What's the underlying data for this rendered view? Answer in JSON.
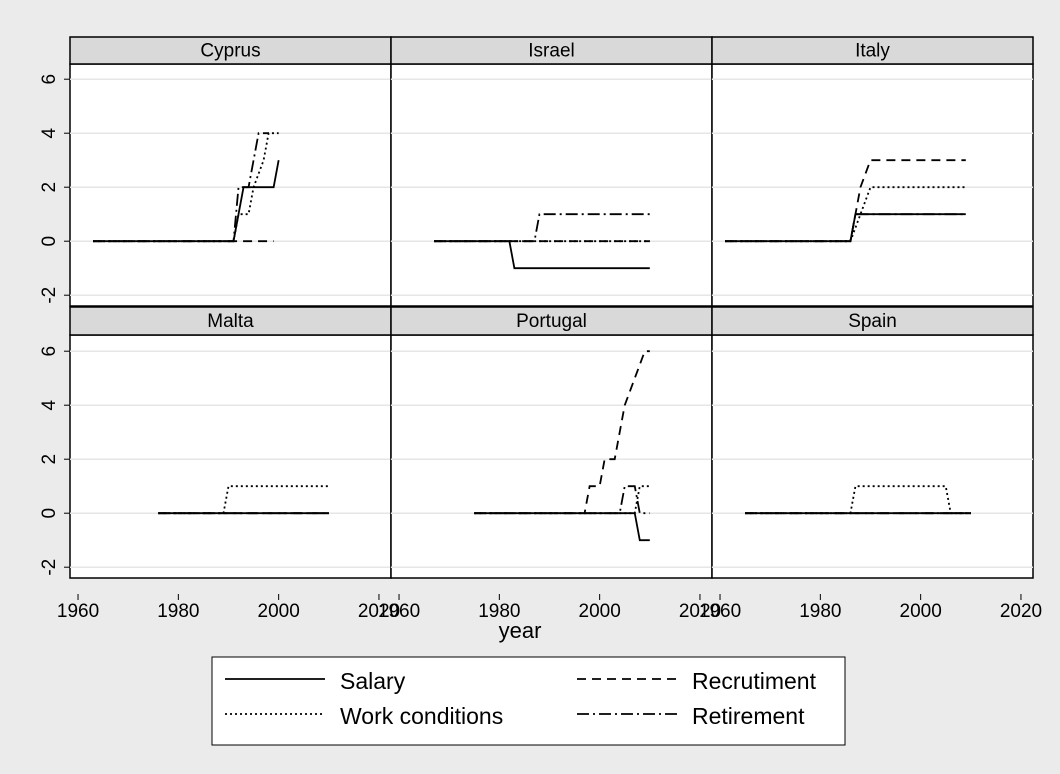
{
  "chart_data": {
    "type": "line",
    "x_label": "year",
    "xlim": [
      1958.4,
      2022.4
    ],
    "xticks": [
      1960,
      1980,
      2000,
      2020
    ],
    "ylim": [
      -2.4,
      6.6
    ],
    "yticks": [
      -2,
      0,
      2,
      4,
      6
    ],
    "grid": true,
    "series": [
      {
        "name": "Salary",
        "color": "#000000",
        "dash": "none"
      },
      {
        "name": "Recrutiment",
        "color": "#000000",
        "dash": "9 6"
      },
      {
        "name": "Work conditions",
        "color": "#000000",
        "dash": "2 3"
      },
      {
        "name": "Retirement",
        "color": "#000000",
        "dash": "12 4 2 4"
      }
    ],
    "panels": [
      {
        "title": "Cyprus",
        "lines": [
          {
            "x": [
              1963,
              1991,
              1992,
              1993,
              1999,
              2000
            ],
            "values": [
              0,
              0,
              1,
              2,
              2,
              3
            ]
          },
          {
            "x": [
              1963,
              1999
            ],
            "values": [
              0,
              0
            ]
          },
          {
            "x": [
              1963,
              1991,
              1992,
              1994,
              1995,
              1997,
              1998,
              2000
            ],
            "values": [
              0,
              0,
              1,
              1,
              2,
              3,
              4,
              4
            ]
          },
          {
            "x": [
              1963,
              1991,
              1992,
              1994,
              1996,
              1998
            ],
            "values": [
              0,
              0,
              2,
              2,
              4,
              4
            ]
          }
        ]
      },
      {
        "title": "Israel",
        "lines": [
          {
            "x": [
              1967,
              1982,
              1983,
              2010
            ],
            "values": [
              0,
              0,
              -1,
              -1
            ]
          },
          {
            "x": [
              1967,
              2010
            ],
            "values": [
              0,
              0
            ]
          },
          {
            "x": [
              1967,
              2010
            ],
            "values": [
              0,
              0
            ]
          },
          {
            "x": [
              1967,
              1987,
              1988,
              2010
            ],
            "values": [
              0,
              0,
              1,
              1
            ]
          }
        ]
      },
      {
        "title": "Italy",
        "lines": [
          {
            "x": [
              1961,
              1986,
              1987,
              2009
            ],
            "values": [
              0,
              0,
              1,
              1
            ]
          },
          {
            "x": [
              1961,
              1986,
              1988,
              1990,
              2009
            ],
            "values": [
              0,
              0,
              2,
              3,
              3
            ]
          },
          {
            "x": [
              1961,
              1986,
              1988,
              1990,
              2009
            ],
            "values": [
              0,
              0,
              1,
              2,
              2
            ]
          },
          {
            "x": [
              1961,
              1986,
              1987,
              2009
            ],
            "values": [
              0,
              0,
              1,
              1
            ]
          }
        ]
      },
      {
        "title": "Malta",
        "lines": [
          {
            "x": [
              1976,
              2010
            ],
            "values": [
              0,
              0
            ]
          },
          {
            "x": [
              1976,
              2010
            ],
            "values": [
              0,
              0
            ]
          },
          {
            "x": [
              1976,
              1989,
              1990,
              2010
            ],
            "values": [
              0,
              0,
              1,
              1
            ]
          },
          {
            "x": [
              1976,
              2010
            ],
            "values": [
              0,
              0
            ]
          }
        ]
      },
      {
        "title": "Portugal",
        "lines": [
          {
            "x": [
              1975,
              2007,
              2008,
              2010
            ],
            "values": [
              0,
              0,
              -1,
              -1
            ]
          },
          {
            "x": [
              1975,
              1997,
              1998,
              2000,
              2001,
              2003,
              2005,
              2007,
              2009,
              2010
            ],
            "values": [
              0,
              0,
              1,
              1,
              2,
              2,
              4,
              5,
              6,
              6
            ]
          },
          {
            "x": [
              1975,
              2007,
              2008,
              2010
            ],
            "values": [
              0,
              0,
              1,
              1
            ]
          },
          {
            "x": [
              1975,
              2004,
              2005,
              2007,
              2008,
              2010
            ],
            "values": [
              0,
              0,
              1,
              1,
              0,
              0
            ]
          }
        ]
      },
      {
        "title": "Spain",
        "lines": [
          {
            "x": [
              1965,
              2010
            ],
            "values": [
              0,
              0
            ]
          },
          {
            "x": [
              1965,
              2010
            ],
            "values": [
              0,
              0
            ]
          },
          {
            "x": [
              1965,
              1986,
              1987,
              2005,
              2006,
              2010
            ],
            "values": [
              0,
              0,
              1,
              1,
              0,
              0
            ]
          },
          {
            "x": [
              1965,
              2010
            ],
            "values": [
              0,
              0
            ]
          }
        ]
      }
    ]
  }
}
